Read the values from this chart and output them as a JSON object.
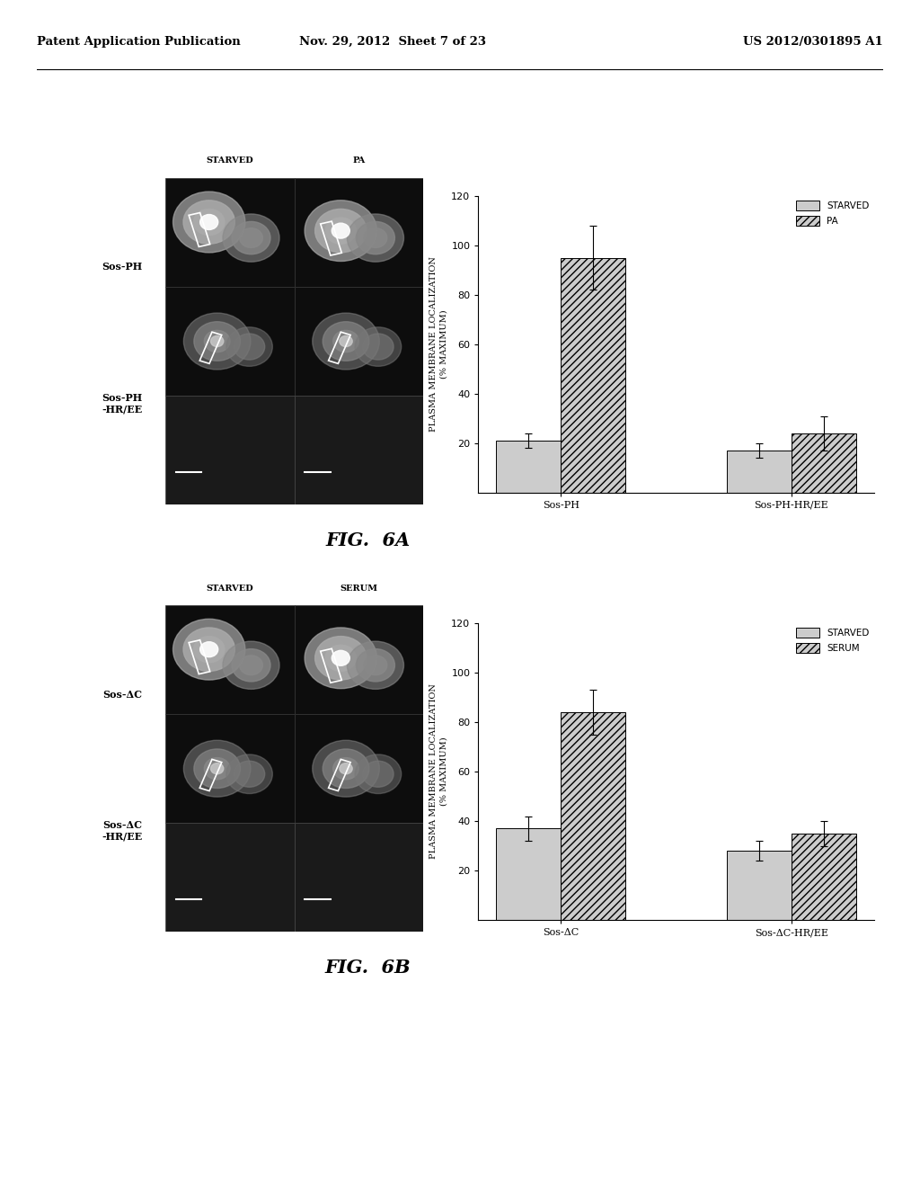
{
  "header_left": "Patent Application Publication",
  "header_mid": "Nov. 29, 2012  Sheet 7 of 23",
  "header_right": "US 2012/0301895 A1",
  "fig6a": {
    "caption": "FIG.  6A",
    "ylabel": "PLASMA MEMBRANE LOCALIZATION\n(% MAXIMUM)",
    "ylim": [
      0,
      120
    ],
    "yticks": [
      20,
      40,
      60,
      80,
      100,
      120
    ],
    "groups": [
      "Sos-PH",
      "Sos-PH-HR/EE"
    ],
    "legend_labels": [
      "STARVED",
      "PA"
    ],
    "bar1_values": [
      21,
      17
    ],
    "bar2_values": [
      95,
      24
    ],
    "bar1_errors": [
      3,
      3
    ],
    "bar2_errors": [
      13,
      7
    ],
    "col_labels": [
      "STARVED",
      "PA"
    ],
    "row_labels": [
      "Sos-PH",
      "Sos-PH\n-HR/EE"
    ]
  },
  "fig6b": {
    "caption": "FIG.  6B",
    "ylabel": "PLASMA MEMBRANE LOCALIZATION\n(% MAXIMUM)",
    "ylim": [
      0,
      120
    ],
    "yticks": [
      20,
      40,
      60,
      80,
      100,
      120
    ],
    "groups": [
      "Sos-ΔC",
      "Sos-ΔC-HR/EE"
    ],
    "legend_labels": [
      "STARVED",
      "SERUM"
    ],
    "bar1_values": [
      37,
      28
    ],
    "bar2_values": [
      84,
      35
    ],
    "bar1_errors": [
      5,
      4
    ],
    "bar2_errors": [
      9,
      5
    ],
    "col_labels": [
      "STARVED",
      "SERUM"
    ],
    "row_labels": [
      "Sos-ΔC",
      "Sos-ΔC\n-HR/EE"
    ]
  },
  "bar_width": 0.28,
  "bar_color_plain": "#cccccc",
  "bar_hatch": "////",
  "background_color": "#ffffff",
  "text_color": "#000000",
  "font_family": "DejaVu Sans"
}
